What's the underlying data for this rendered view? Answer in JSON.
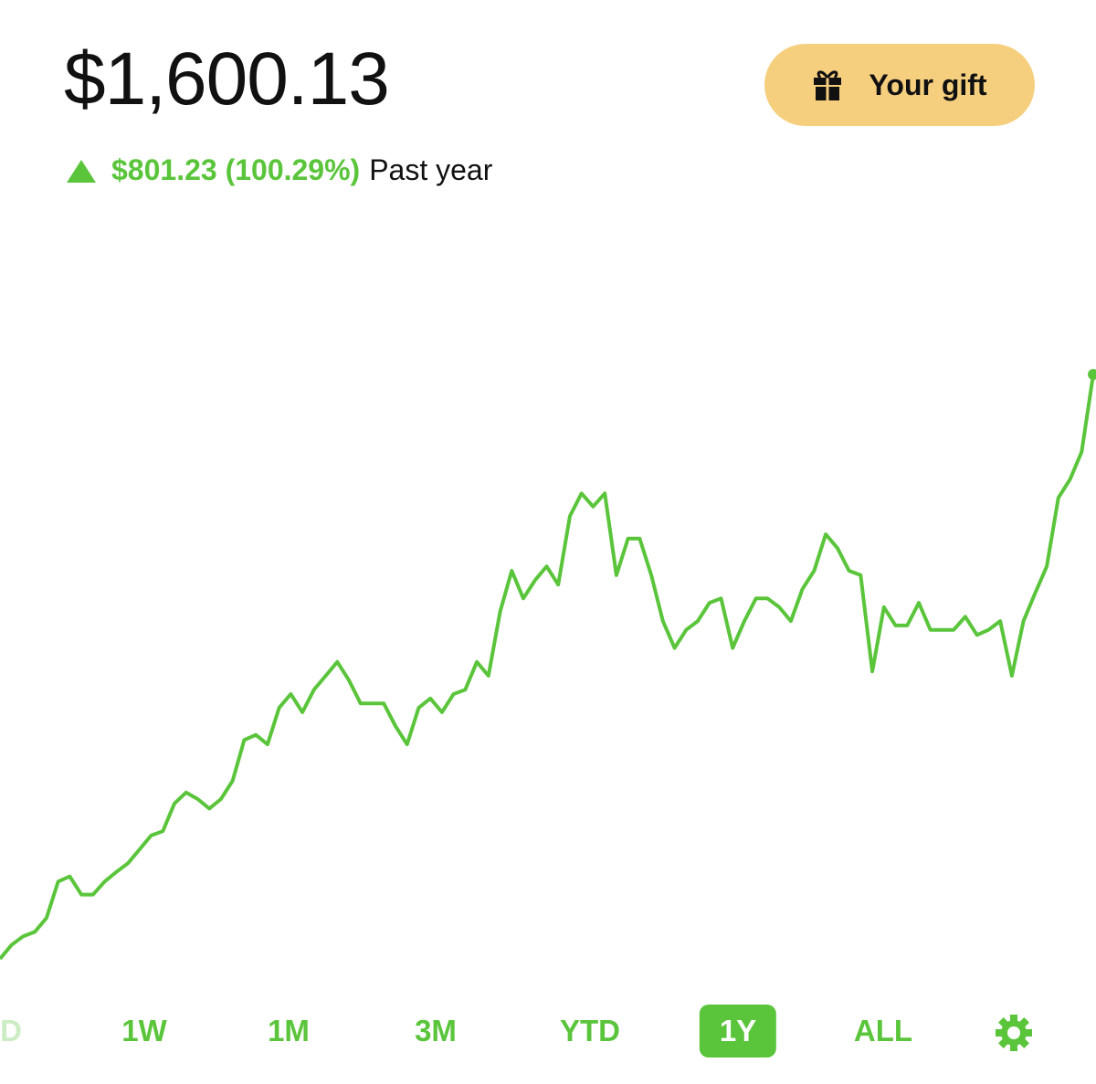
{
  "header": {
    "balance": "$1,600.13",
    "change": "$801.23 (100.29%)",
    "period": "Past year",
    "gift_button": "Your gift"
  },
  "chart_data": {
    "type": "line",
    "color": "#5ac53b",
    "values": [
      798.9,
      818,
      830,
      836,
      855,
      905,
      912,
      887,
      887,
      905,
      918,
      930,
      949,
      968,
      974,
      1012,
      1027,
      1018,
      1005,
      1018,
      1043,
      1099,
      1106,
      1093,
      1143,
      1162,
      1137,
      1168,
      1187,
      1206,
      1181,
      1149,
      1149,
      1149,
      1118,
      1093,
      1143,
      1156,
      1137,
      1162,
      1168,
      1206,
      1187,
      1275,
      1331,
      1293,
      1318,
      1337,
      1312,
      1406,
      1437,
      1419,
      1437,
      1325,
      1375,
      1375,
      1325,
      1262,
      1225,
      1250,
      1262,
      1287,
      1293,
      1225,
      1262,
      1293,
      1293,
      1281,
      1262,
      1306,
      1331,
      1381,
      1362,
      1331,
      1325,
      1193,
      1281,
      1256,
      1256,
      1287,
      1250,
      1250,
      1250,
      1268,
      1243,
      1250,
      1262,
      1187,
      1262,
      1300,
      1337,
      1431,
      1456,
      1494,
      1600.13
    ]
  },
  "range_tabs": {
    "labels": [
      "D",
      "1W",
      "1M",
      "3M",
      "YTD",
      "1Y",
      "ALL"
    ],
    "selected": 5
  }
}
